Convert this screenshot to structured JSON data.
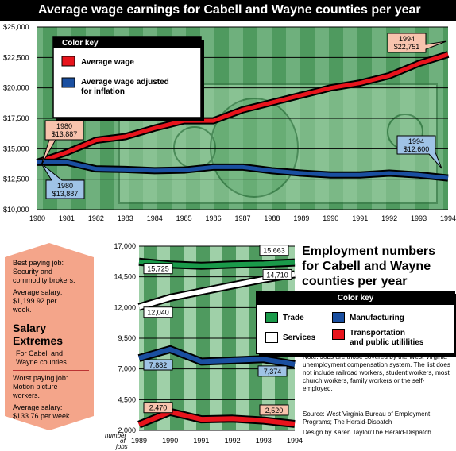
{
  "chart_data": [
    {
      "type": "line",
      "title": "Average wage earnings for Cabell and Wayne counties per year",
      "x": [
        1980,
        1981,
        1982,
        1983,
        1984,
        1985,
        1986,
        1987,
        1988,
        1989,
        1990,
        1991,
        1992,
        1993,
        1994
      ],
      "x_tick_labels": [
        "1980",
        "1981",
        "1982",
        "1983",
        "1984",
        "1985",
        "1986",
        "1987",
        "1988",
        "1989",
        "1990",
        "1991",
        "1992",
        "1993",
        "1994"
      ],
      "y_tick_labels": [
        "$10,000",
        "$12,500",
        "$15,000",
        "$17,500",
        "$20,000",
        "$22,500",
        "$25,000"
      ],
      "ylim": [
        10000,
        25000
      ],
      "legend_title": "Color key",
      "series": [
        {
          "name": "Average wage",
          "color": "#e8141c",
          "values": [
            13887,
            14700,
            15700,
            16000,
            16700,
            17300,
            17300,
            18200,
            18800,
            19400,
            20000,
            20400,
            21000,
            22000,
            22751
          ]
        },
        {
          "name": "Average wage adjusted for inflation",
          "color": "#1a4fa0",
          "values": [
            13887,
            13900,
            13350,
            13300,
            13200,
            13250,
            13500,
            13500,
            13200,
            13000,
            12850,
            12850,
            13000,
            12850,
            12600
          ]
        }
      ],
      "annotations": [
        {
          "year": "1980",
          "value": "$13,887",
          "series": "Average wage"
        },
        {
          "year": "1994",
          "value": "$22,751",
          "series": "Average wage"
        },
        {
          "year": "1980",
          "value": "$13,887",
          "series": "Average wage adjusted for inflation"
        },
        {
          "year": "1994",
          "value": "$12,600",
          "series": "Average wage adjusted for inflation"
        }
      ]
    },
    {
      "type": "line",
      "title": "Employment numbers for Cabell and Wayne counties per year",
      "x": [
        1989,
        1990,
        1991,
        1992,
        1993,
        1994
      ],
      "x_tick_labels": [
        "1989",
        "1990",
        "1991",
        "1992",
        "1993",
        "1994"
      ],
      "y_tick_labels": [
        "2,000",
        "4,500",
        "7,000",
        "9,500",
        "12,000",
        "14,500",
        "17,000"
      ],
      "ylim": [
        2000,
        17000
      ],
      "y_unit_label": "number of jobs",
      "legend_title": "Color key",
      "series": [
        {
          "name": "Trade",
          "color": "#1a9a4a",
          "values": [
            15725,
            15500,
            15400,
            15500,
            15550,
            15663
          ]
        },
        {
          "name": "Manufacturing",
          "color": "#1a4fa0",
          "values": [
            7882,
            8600,
            7600,
            7700,
            7800,
            7374
          ]
        },
        {
          "name": "Services",
          "color": "#ffffff",
          "values": [
            12040,
            12800,
            13300,
            13800,
            14300,
            14710
          ]
        },
        {
          "name": "Transportation and public utililities",
          "color": "#e8141c",
          "values": [
            2470,
            3500,
            2900,
            2950,
            2800,
            2520
          ]
        }
      ],
      "data_labels": [
        "15,725",
        "15,663",
        "14,710",
        "12,040",
        "7,882",
        "7,374",
        "2,470",
        "2,520"
      ]
    }
  ],
  "wage_chart": {
    "key_title": "Color key",
    "key_items": [
      "Average wage",
      "Average wage adjusted",
      "for inflation"
    ],
    "callouts": {
      "red_1980_year": "1980",
      "red_1980_value": "$13,887",
      "red_1994_year": "1994",
      "red_1994_value": "$22,751",
      "blue_1980_year": "1980",
      "blue_1980_value": "$13,887",
      "blue_1994_year": "1994",
      "blue_1994_value": "$12,600"
    }
  },
  "employment_chart": {
    "title": "Employment numbers for Cabell and Wayne counties per year",
    "key_title": "Color key",
    "key_items": {
      "trade": "Trade",
      "manufacturing": "Manufacturing",
      "services": "Services",
      "transport_1": "Transportation",
      "transport_2": "and public utililities"
    },
    "y_unit_1": "number",
    "y_unit_2": "of",
    "y_unit_3": "jobs"
  },
  "salary_extremes": {
    "best_1": "Best paying job:",
    "best_2": "Security and",
    "best_3": "commodity brokers.",
    "best_avg_1": "Average salary:",
    "best_avg_2": "$1,199.92 per",
    "best_avg_3": "week.",
    "heading_1": "Salary",
    "heading_2": "Extremes",
    "sub_1": "For Cabell and",
    "sub_2": "Wayne counties",
    "worst_1": "Worst paying job:",
    "worst_2": "Motion picture",
    "worst_3": "workers.",
    "worst_avg_1": "Average salary:",
    "worst_avg_2": "$133.76 per week."
  },
  "note": "Note: Jobs are those covered by the West Virginia unemployment compensation system. The list does not include railroad workers, student workers, most church workers, family workers or the self-employed.",
  "source": "Source: West Virginia Bureau of Employment Programs; The Herald-Dispatch",
  "credit": "Design by Karen Taylor/The Herald-Dispatch",
  "colors": {
    "chart_green": "#4f9a5f",
    "chart_green_light": "#8fc79a",
    "trade": "#1a9a4a",
    "manufacturing": "#1a4fa0",
    "transport": "#e8141c",
    "salmon": "#f4a58a",
    "callout": "#f8c3ad",
    "callout_blue": "#9fc3e6"
  }
}
